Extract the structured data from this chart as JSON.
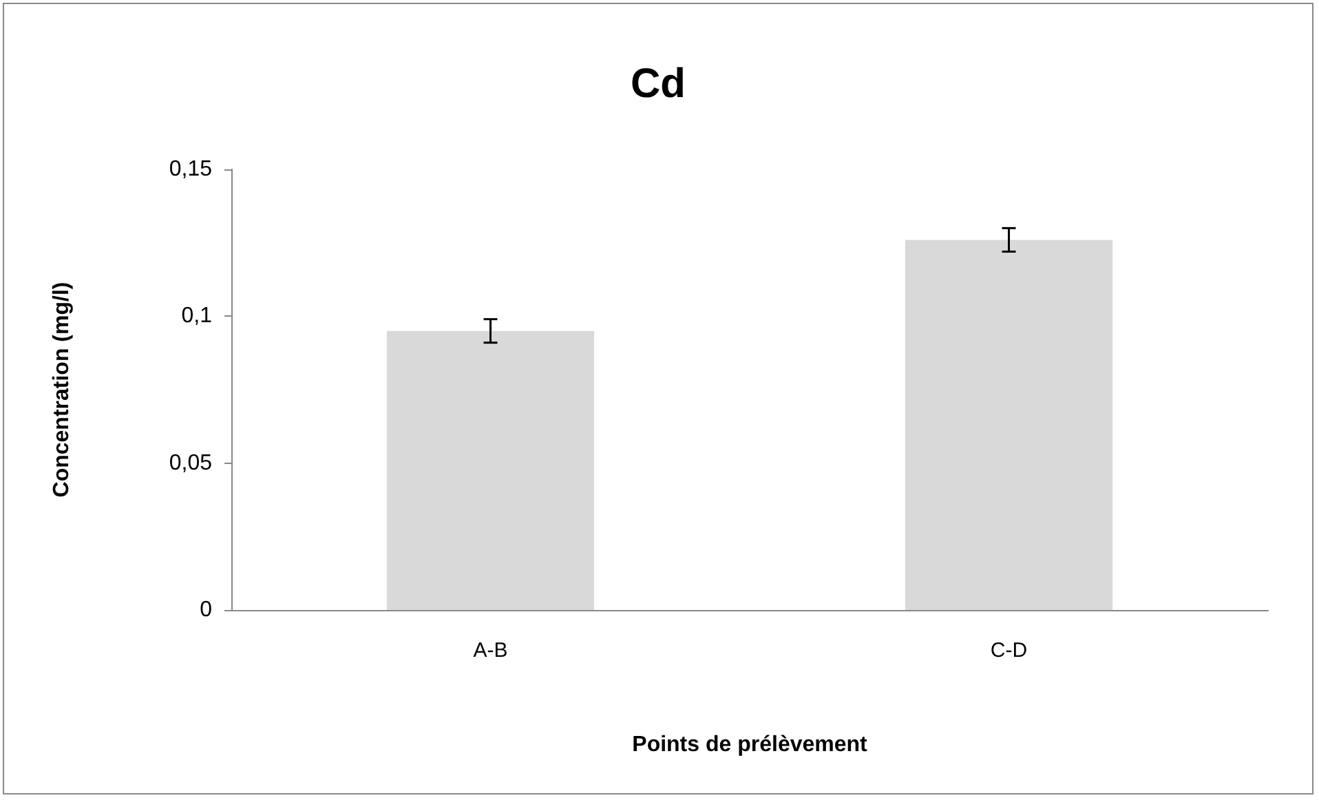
{
  "chart_data": {
    "type": "bar",
    "title": "Cd",
    "xlabel": "Points de prélèvement",
    "ylabel": "Concentration (mg/l)",
    "categories": [
      "A-B",
      "C-D"
    ],
    "values": [
      0.095,
      0.126
    ],
    "errors": [
      0.004,
      0.004
    ],
    "color": "#d9d9d9",
    "ylim": [
      0,
      0.15
    ],
    "yticks": [
      {
        "value": 0,
        "label": "0"
      },
      {
        "value": 0.05,
        "label": "0,05"
      },
      {
        "value": 0.1,
        "label": "0,1"
      },
      {
        "value": 0.15,
        "label": "0,15"
      }
    ],
    "grid": false
  }
}
